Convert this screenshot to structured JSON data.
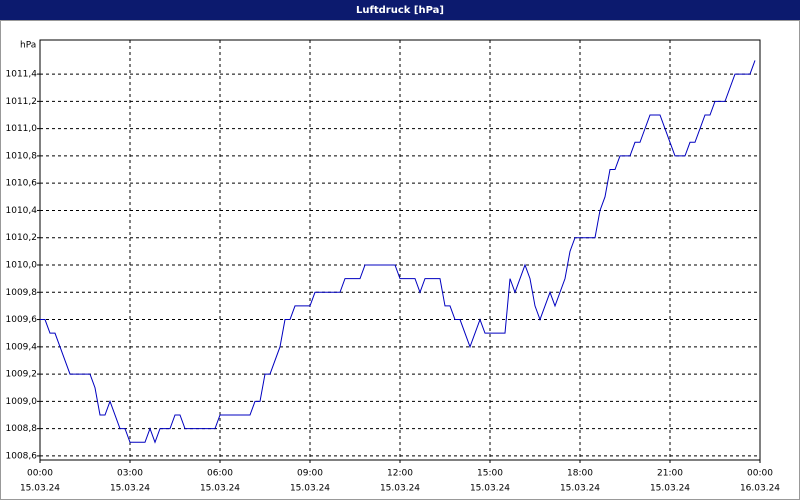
{
  "chart_data": {
    "type": "line",
    "title": "Luftdruck [hPa]",
    "y_label": "hPa",
    "x": [
      0,
      10,
      20,
      30,
      50,
      60,
      100,
      110,
      120,
      130,
      140,
      160,
      170,
      180,
      210,
      220,
      230,
      240,
      260,
      270,
      280,
      290,
      350,
      360,
      420,
      430,
      440,
      450,
      460,
      480,
      490,
      500,
      510,
      540,
      550,
      600,
      610,
      640,
      650,
      710,
      720,
      750,
      760,
      770,
      800,
      810,
      820,
      830,
      840,
      860,
      880,
      890,
      930,
      940,
      950,
      970,
      980,
      990,
      1000,
      1020,
      1030,
      1050,
      1060,
      1070,
      1110,
      1120,
      1130,
      1140,
      1150,
      1160,
      1180,
      1190,
      1200,
      1210,
      1220,
      1240,
      1260,
      1270,
      1290,
      1300,
      1310,
      1330,
      1340,
      1350,
      1370,
      1390,
      1420,
      1430
    ],
    "series": [
      {
        "name": "Luftdruck",
        "color": "#0000c0",
        "values": [
          1009.6,
          1009.6,
          1009.5,
          1009.5,
          1009.3,
          1009.2,
          1009.2,
          1009.1,
          1008.9,
          1008.9,
          1009.0,
          1008.8,
          1008.8,
          1008.7,
          1008.7,
          1008.8,
          1008.7,
          1008.8,
          1008.8,
          1008.9,
          1008.9,
          1008.8,
          1008.8,
          1008.9,
          1008.9,
          1009.0,
          1009.0,
          1009.2,
          1009.2,
          1009.4,
          1009.6,
          1009.6,
          1009.7,
          1009.7,
          1009.8,
          1009.8,
          1009.9,
          1009.9,
          1010.0,
          1010.0,
          1009.9,
          1009.9,
          1009.8,
          1009.9,
          1009.9,
          1009.7,
          1009.7,
          1009.6,
          1009.6,
          1009.4,
          1009.6,
          1009.5,
          1009.5,
          1009.9,
          1009.8,
          1010.0,
          1009.9,
          1009.7,
          1009.6,
          1009.8,
          1009.7,
          1009.9,
          1010.1,
          1010.2,
          1010.2,
          1010.4,
          1010.5,
          1010.7,
          1010.7,
          1010.8,
          1010.8,
          1010.9,
          1010.9,
          1011.0,
          1011.1,
          1011.1,
          1010.9,
          1010.8,
          1010.8,
          1010.9,
          1010.9,
          1011.1,
          1011.1,
          1011.2,
          1011.2,
          1011.4,
          1011.4,
          1011.5
        ]
      }
    ],
    "xlim": [
      0,
      1440
    ],
    "xticks": [
      {
        "value": 0,
        "label": "00:00",
        "date": "15.03.24"
      },
      {
        "value": 180,
        "label": "03:00",
        "date": "15.03.24"
      },
      {
        "value": 360,
        "label": "06:00",
        "date": "15.03.24"
      },
      {
        "value": 540,
        "label": "09:00",
        "date": "15.03.24"
      },
      {
        "value": 720,
        "label": "12:00",
        "date": "15.03.24"
      },
      {
        "value": 900,
        "label": "15:00",
        "date": "15.03.24"
      },
      {
        "value": 1080,
        "label": "18:00",
        "date": "15.03.24"
      },
      {
        "value": 1260,
        "label": "21:00",
        "date": "15.03.24"
      },
      {
        "value": 1440,
        "label": "00:00",
        "date": "16.03.24"
      }
    ],
    "ylim": [
      1008.57,
      1011.65
    ],
    "yticks": [
      {
        "value": 1008.6,
        "label": "1008,6"
      },
      {
        "value": 1008.8,
        "label": "1008,8"
      },
      {
        "value": 1009.0,
        "label": "1009,0"
      },
      {
        "value": 1009.2,
        "label": "1009,2"
      },
      {
        "value": 1009.4,
        "label": "1009,4"
      },
      {
        "value": 1009.6,
        "label": "1009,6"
      },
      {
        "value": 1009.8,
        "label": "1009,8"
      },
      {
        "value": 1010.0,
        "label": "1010,0"
      },
      {
        "value": 1010.2,
        "label": "1010,2"
      },
      {
        "value": 1010.4,
        "label": "1010,4"
      },
      {
        "value": 1010.6,
        "label": "1010,6"
      },
      {
        "value": 1010.8,
        "label": "1010,8"
      },
      {
        "value": 1011.0,
        "label": "1011,0"
      },
      {
        "value": 1011.2,
        "label": "1011,2"
      },
      {
        "value": 1011.4,
        "label": "1011,4"
      }
    ],
    "grid": true
  }
}
